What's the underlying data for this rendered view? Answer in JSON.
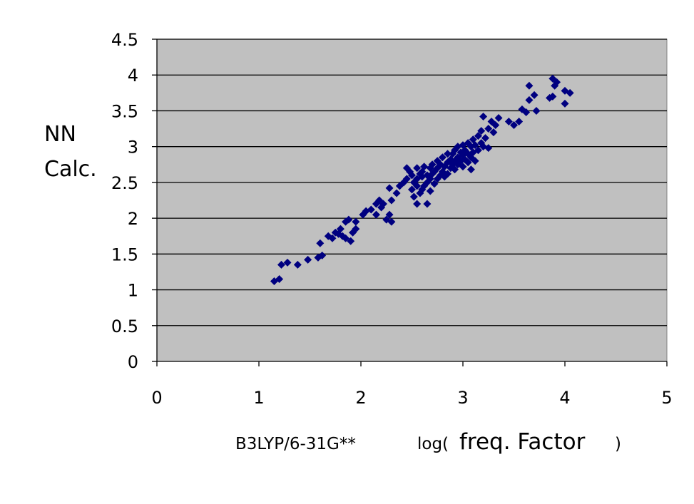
{
  "chart_data": {
    "type": "scatter",
    "ylabel_lines": [
      "NN",
      "Calc."
    ],
    "xlabel_parts": [
      "B3LYP/6-31G**",
      "log(",
      "freq. Factor",
      ")"
    ],
    "xlim": [
      0,
      5
    ],
    "ylim": [
      0,
      4.5
    ],
    "xticks": [
      "0",
      "1",
      "2",
      "3",
      "4",
      "5"
    ],
    "yticks": [
      "0",
      "0.5",
      "1",
      "1.5",
      "2",
      "2.5",
      "3",
      "3.5",
      "4",
      "4.5"
    ],
    "grid": "horizontal",
    "legend": "none",
    "plot_background": "#c0c0c0",
    "marker_color": "#000080",
    "series": [
      {
        "points": [
          [
            1.15,
            1.12
          ],
          [
            1.2,
            1.15
          ],
          [
            1.22,
            1.35
          ],
          [
            1.28,
            1.38
          ],
          [
            1.38,
            1.35
          ],
          [
            1.48,
            1.42
          ],
          [
            1.58,
            1.45
          ],
          [
            1.62,
            1.48
          ],
          [
            1.6,
            1.65
          ],
          [
            1.68,
            1.75
          ],
          [
            1.72,
            1.72
          ],
          [
            1.75,
            1.8
          ],
          [
            1.78,
            1.78
          ],
          [
            1.8,
            1.85
          ],
          [
            1.82,
            1.75
          ],
          [
            1.85,
            1.72
          ],
          [
            1.85,
            1.95
          ],
          [
            1.88,
            1.98
          ],
          [
            1.9,
            1.68
          ],
          [
            1.92,
            1.8
          ],
          [
            1.95,
            1.85
          ],
          [
            1.95,
            1.95
          ],
          [
            2.02,
            2.05
          ],
          [
            2.05,
            2.1
          ],
          [
            2.1,
            2.12
          ],
          [
            2.15,
            2.2
          ],
          [
            2.15,
            2.05
          ],
          [
            2.18,
            2.25
          ],
          [
            2.2,
            2.15
          ],
          [
            2.22,
            2.2
          ],
          [
            2.25,
            1.98
          ],
          [
            2.28,
            2.05
          ],
          [
            2.3,
            1.95
          ],
          [
            2.3,
            2.25
          ],
          [
            2.28,
            2.42
          ],
          [
            2.35,
            2.35
          ],
          [
            2.38,
            2.45
          ],
          [
            2.42,
            2.5
          ],
          [
            2.45,
            2.55
          ],
          [
            2.45,
            2.7
          ],
          [
            2.48,
            2.65
          ],
          [
            2.5,
            2.6
          ],
          [
            2.5,
            2.4
          ],
          [
            2.52,
            2.3
          ],
          [
            2.52,
            2.5
          ],
          [
            2.55,
            2.2
          ],
          [
            2.55,
            2.45
          ],
          [
            2.55,
            2.55
          ],
          [
            2.55,
            2.7
          ],
          [
            2.58,
            2.62
          ],
          [
            2.58,
            2.35
          ],
          [
            2.6,
            2.4
          ],
          [
            2.6,
            2.58
          ],
          [
            2.6,
            2.65
          ],
          [
            2.62,
            2.45
          ],
          [
            2.62,
            2.72
          ],
          [
            2.65,
            2.2
          ],
          [
            2.65,
            2.5
          ],
          [
            2.65,
            2.6
          ],
          [
            2.68,
            2.55
          ],
          [
            2.68,
            2.7
          ],
          [
            2.68,
            2.38
          ],
          [
            2.7,
            2.62
          ],
          [
            2.7,
            2.75
          ],
          [
            2.72,
            2.48
          ],
          [
            2.72,
            2.65
          ],
          [
            2.75,
            2.55
          ],
          [
            2.75,
            2.7
          ],
          [
            2.75,
            2.8
          ],
          [
            2.78,
            2.6
          ],
          [
            2.78,
            2.75
          ],
          [
            2.8,
            2.65
          ],
          [
            2.8,
            2.85
          ],
          [
            2.82,
            2.58
          ],
          [
            2.82,
            2.72
          ],
          [
            2.85,
            2.62
          ],
          [
            2.85,
            2.78
          ],
          [
            2.85,
            2.9
          ],
          [
            2.88,
            2.7
          ],
          [
            2.88,
            2.82
          ],
          [
            2.9,
            2.75
          ],
          [
            2.9,
            2.9
          ],
          [
            2.92,
            2.68
          ],
          [
            2.92,
            2.8
          ],
          [
            2.92,
            2.95
          ],
          [
            2.95,
            2.75
          ],
          [
            2.95,
            2.85
          ],
          [
            2.95,
            3.0
          ],
          [
            2.98,
            2.8
          ],
          [
            2.98,
            2.92
          ],
          [
            3.0,
            2.72
          ],
          [
            3.0,
            2.88
          ],
          [
            3.0,
            3.02
          ],
          [
            3.02,
            2.82
          ],
          [
            3.02,
            2.95
          ],
          [
            3.05,
            2.78
          ],
          [
            3.05,
            2.9
          ],
          [
            3.05,
            3.05
          ],
          [
            3.08,
            2.68
          ],
          [
            3.08,
            2.85
          ],
          [
            3.08,
            3.0
          ],
          [
            3.1,
            2.92
          ],
          [
            3.1,
            3.1
          ],
          [
            3.12,
            2.8
          ],
          [
            3.12,
            3.02
          ],
          [
            3.15,
            2.95
          ],
          [
            3.15,
            3.15
          ],
          [
            3.18,
            3.05
          ],
          [
            3.18,
            3.22
          ],
          [
            3.2,
            3.0
          ],
          [
            3.2,
            3.42
          ],
          [
            3.22,
            3.12
          ],
          [
            3.25,
            2.98
          ],
          [
            3.25,
            3.25
          ],
          [
            3.28,
            3.35
          ],
          [
            3.3,
            3.2
          ],
          [
            3.32,
            3.3
          ],
          [
            3.35,
            3.4
          ],
          [
            3.45,
            3.35
          ],
          [
            3.5,
            3.3
          ],
          [
            3.55,
            3.35
          ],
          [
            3.58,
            3.52
          ],
          [
            3.62,
            3.48
          ],
          [
            3.65,
            3.85
          ],
          [
            3.65,
            3.65
          ],
          [
            3.7,
            3.72
          ],
          [
            3.72,
            3.5
          ],
          [
            3.85,
            3.68
          ],
          [
            3.88,
            3.7
          ],
          [
            3.88,
            3.95
          ],
          [
            3.9,
            3.85
          ],
          [
            3.92,
            3.9
          ],
          [
            4.0,
            3.6
          ],
          [
            4.0,
            3.78
          ],
          [
            4.05,
            3.75
          ]
        ]
      }
    ]
  }
}
